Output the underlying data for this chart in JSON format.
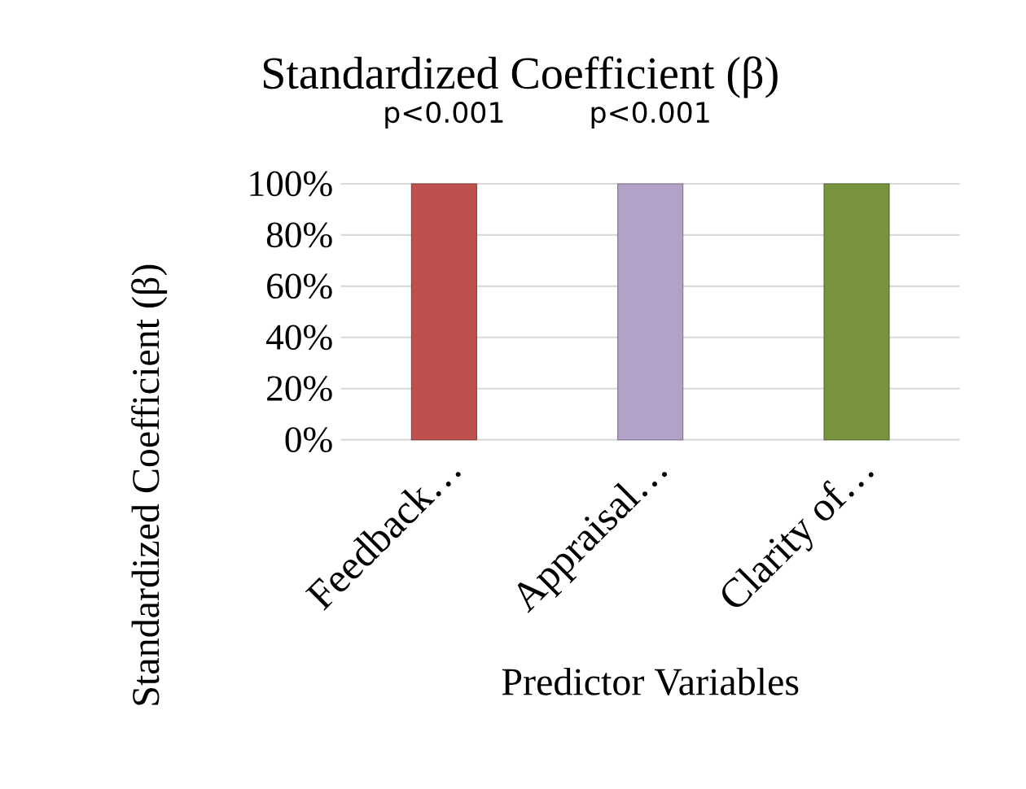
{
  "chart_data": {
    "type": "bar",
    "title": "Standardized Coefficient (β)",
    "xlabel": "Predictor Variables",
    "ylabel": "Standardized Coefficient (β)",
    "categories": [
      "Feedback…",
      "Appraisal…",
      "Clarity of…"
    ],
    "values": [
      100,
      100,
      100
    ],
    "colors": [
      "#c0504d",
      "#b3a2c7",
      "#77933c"
    ],
    "ylim": [
      0,
      100
    ],
    "yticks": [
      {
        "value": 0,
        "label": "0%"
      },
      {
        "value": 20,
        "label": "20%"
      },
      {
        "value": 40,
        "label": "40%"
      },
      {
        "value": 60,
        "label": "60%"
      },
      {
        "value": 80,
        "label": "80%"
      },
      {
        "value": 100,
        "label": "100%"
      }
    ],
    "grid": "y",
    "annotations": [
      {
        "text": "p<0.001",
        "x": "Feedback…",
        "y": 100
      },
      {
        "text": "p<0.001",
        "x": "Appraisal…",
        "y": 100
      }
    ]
  }
}
